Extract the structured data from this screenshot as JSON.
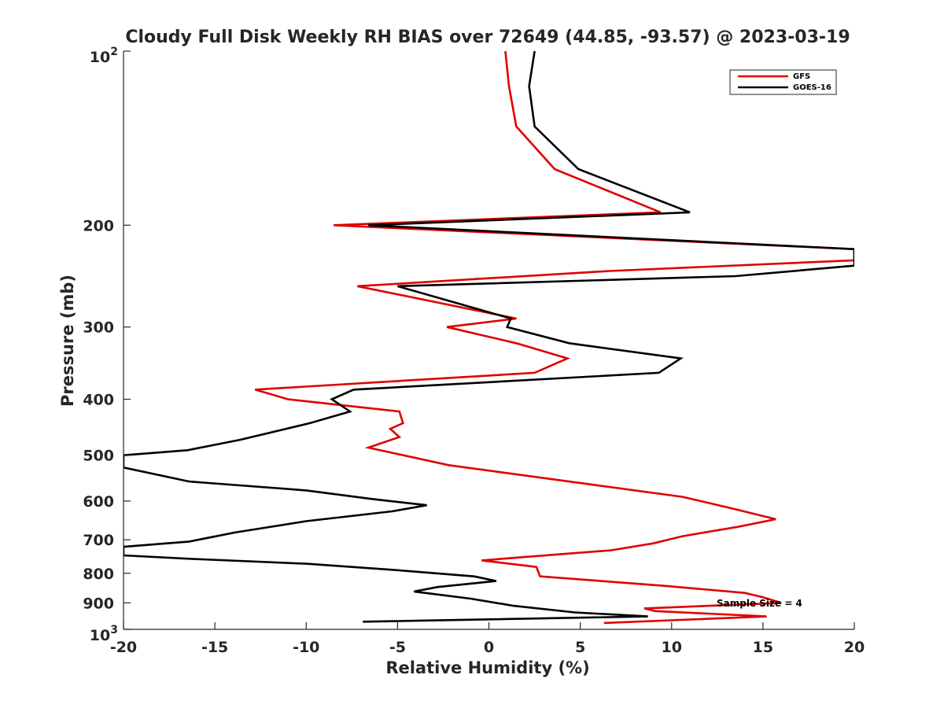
{
  "chart_data": {
    "type": "line",
    "title": "Cloudy Full Disk Weekly RH BIAS over 72649 (44.85, -93.57) @ 2023-03-19",
    "xlabel": "Relative Humidity (%)",
    "ylabel": "Pressure (mb)",
    "xlim": [
      -20,
      20
    ],
    "ylim": [
      100,
      1000
    ],
    "y_scale": "log",
    "y_reversed": true,
    "x_ticks": [
      "-20",
      "-15",
      "-10",
      "-5",
      "0",
      "5",
      "10",
      "15",
      "20"
    ],
    "y_ticks": [
      {
        "value": 100,
        "base": "10",
        "exp": "2"
      },
      {
        "value": 200,
        "label": "200"
      },
      {
        "value": 300,
        "label": "300"
      },
      {
        "value": 400,
        "label": "400"
      },
      {
        "value": 500,
        "label": "500"
      },
      {
        "value": 600,
        "label": "600"
      },
      {
        "value": 700,
        "label": "700"
      },
      {
        "value": 800,
        "label": "800"
      },
      {
        "value": 900,
        "label": "900"
      },
      {
        "value": 1000,
        "base": "10",
        "exp": "3"
      }
    ],
    "legend_position": "top-right",
    "annotation": "Sample Size = 4",
    "series": [
      {
        "name": "GFS",
        "color": "#e00000",
        "points": [
          [
            0.9,
            100
          ],
          [
            1.1,
            115
          ],
          [
            1.5,
            135
          ],
          [
            3.6,
            160
          ],
          [
            9.4,
            190
          ],
          [
            -8.5,
            200
          ],
          [
            20.0,
            220
          ],
          [
            20.0,
            230
          ],
          [
            6.6,
            240
          ],
          [
            -7.2,
            255
          ],
          [
            1.5,
            290
          ],
          [
            -2.3,
            300
          ],
          [
            1.5,
            320
          ],
          [
            4.3,
            340
          ],
          [
            2.5,
            360
          ],
          [
            -12.8,
            385
          ],
          [
            -11.0,
            400
          ],
          [
            -4.9,
            420
          ],
          [
            -4.7,
            440
          ],
          [
            -5.4,
            450
          ],
          [
            -4.9,
            465
          ],
          [
            -6.6,
            485
          ],
          [
            -2.2,
            520
          ],
          [
            5.3,
            560
          ],
          [
            10.6,
            590
          ],
          [
            13.5,
            620
          ],
          [
            15.7,
            645
          ],
          [
            13.6,
            665
          ],
          [
            10.6,
            690
          ],
          [
            9.0,
            710
          ],
          [
            6.7,
            730
          ],
          [
            -0.4,
            760
          ],
          [
            2.6,
            780
          ],
          [
            2.8,
            810
          ],
          [
            9.4,
            840
          ],
          [
            14.0,
            865
          ],
          [
            15.0,
            880
          ],
          [
            16.0,
            900
          ],
          [
            8.5,
            920
          ],
          [
            9.1,
            930
          ],
          [
            15.2,
            950
          ],
          [
            6.3,
            975
          ]
        ]
      },
      {
        "name": "GOES-16",
        "color": "#000000",
        "points": [
          [
            2.5,
            100
          ],
          [
            2.2,
            115
          ],
          [
            2.5,
            135
          ],
          [
            4.9,
            160
          ],
          [
            11.0,
            190
          ],
          [
            -6.6,
            200
          ],
          [
            20.0,
            220
          ],
          [
            20.0,
            235
          ],
          [
            13.5,
            245
          ],
          [
            -5.0,
            255
          ],
          [
            1.2,
            290
          ],
          [
            1.0,
            300
          ],
          [
            4.4,
            320
          ],
          [
            10.5,
            340
          ],
          [
            9.3,
            360
          ],
          [
            -7.4,
            385
          ],
          [
            -8.6,
            400
          ],
          [
            -7.6,
            420
          ],
          [
            -9.8,
            440
          ],
          [
            -13.6,
            470
          ],
          [
            -16.5,
            490
          ],
          [
            -20.0,
            500
          ],
          [
            -20.0,
            525
          ],
          [
            -16.4,
            555
          ],
          [
            -10.0,
            575
          ],
          [
            -6.4,
            595
          ],
          [
            -3.4,
            610
          ],
          [
            -5.3,
            625
          ],
          [
            -10.0,
            650
          ],
          [
            -13.9,
            680
          ],
          [
            -16.4,
            705
          ],
          [
            -20.0,
            720
          ],
          [
            -20.0,
            745
          ],
          [
            -16.4,
            755
          ],
          [
            -10.0,
            770
          ],
          [
            -5.0,
            790
          ],
          [
            -0.8,
            810
          ],
          [
            0.4,
            825
          ],
          [
            -2.8,
            845
          ],
          [
            -4.1,
            860
          ],
          [
            -1.0,
            885
          ],
          [
            1.3,
            910
          ],
          [
            4.7,
            935
          ],
          [
            8.7,
            950
          ],
          [
            -6.9,
            970
          ]
        ]
      }
    ]
  }
}
